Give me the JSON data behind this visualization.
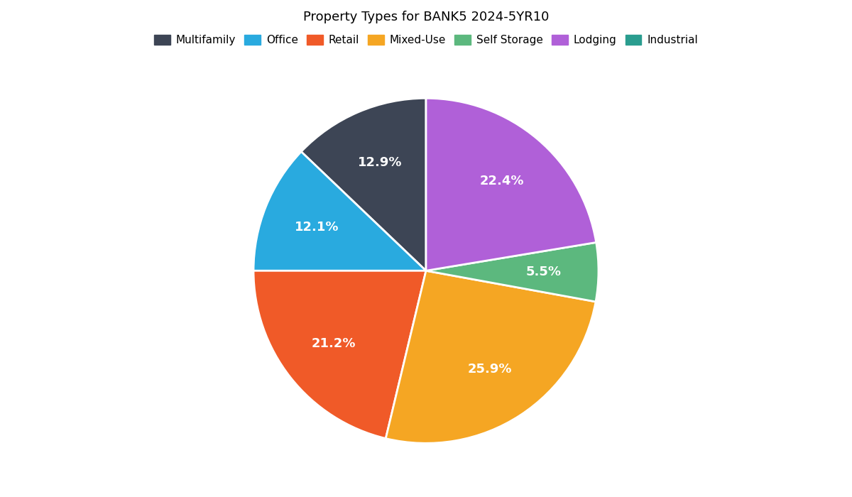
{
  "title": "Property Types for BANK5 2024-5YR10",
  "labels": [
    "Multifamily",
    "Office",
    "Retail",
    "Mixed-Use",
    "Self Storage",
    "Lodging",
    "Industrial"
  ],
  "pie_labels": [
    "Multifamily",
    "Office",
    "Retail",
    "Mixed-Use",
    "Self Storage",
    "Lodging"
  ],
  "values": [
    10.3,
    9.7,
    17.0,
    20.7,
    4.4,
    17.9
  ],
  "colors": [
    "#3d4555",
    "#29aadf",
    "#f05a28",
    "#f5a623",
    "#5cb87e",
    "#b060d8"
  ],
  "legend_colors": [
    "#3d4555",
    "#29aadf",
    "#f05a28",
    "#f5a623",
    "#5cb87e",
    "#b060d8",
    "#2a9d8f"
  ],
  "label_color": "white",
  "startangle": 90,
  "figsize": [
    12,
    7
  ],
  "dpi": 100
}
